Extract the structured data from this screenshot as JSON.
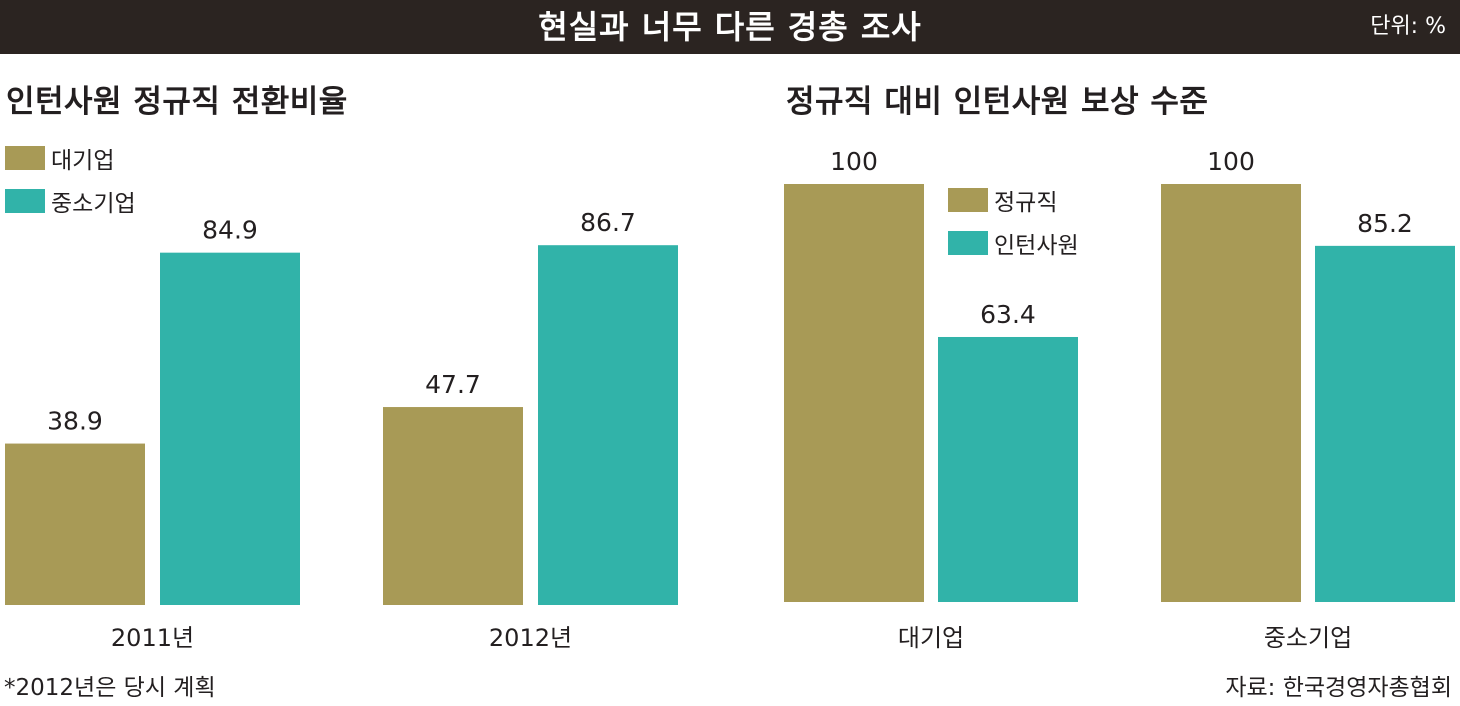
{
  "header": {
    "title": "현실과 너무 다른 경총 조사",
    "unit": "단위: %"
  },
  "colors": {
    "header_bg": "#2b2421",
    "gold": "#a89a56",
    "teal": "#31b3a9"
  },
  "chart_data": [
    {
      "type": "bar",
      "title": "인턴사원 정규직 전환비율",
      "categories": [
        "2011년",
        "2012년"
      ],
      "series": [
        {
          "name": "대기업",
          "values": [
            38.9,
            47.7
          ],
          "color": "#a89a56"
        },
        {
          "name": "중소기업",
          "values": [
            84.9,
            86.7
          ],
          "color": "#31b3a9"
        }
      ],
      "ylim": [
        0,
        100
      ],
      "grid": false,
      "legend": "top-left"
    },
    {
      "type": "bar",
      "title": "정규직 대비 인턴사원 보상 수준",
      "categories": [
        "대기업",
        "중소기업"
      ],
      "series": [
        {
          "name": "정규직",
          "values": [
            100,
            100
          ],
          "color": "#a89a56"
        },
        {
          "name": "인턴사원",
          "values": [
            63.4,
            85.2
          ],
          "color": "#31b3a9"
        }
      ],
      "ylim": [
        0,
        100
      ],
      "grid": false,
      "legend": "top-center"
    }
  ],
  "footnote": "*2012년은 당시 계획",
  "source": "자료: 한국경영자총협회"
}
